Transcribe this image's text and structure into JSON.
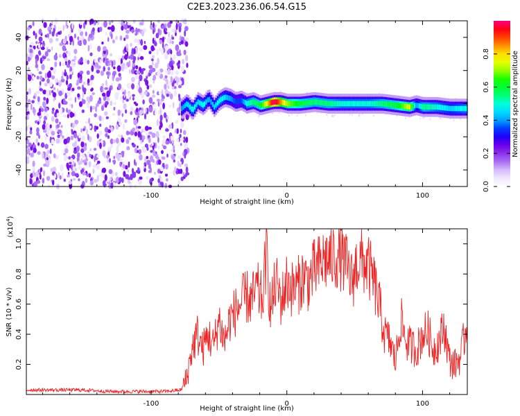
{
  "figure_title": "C2E3.2023.236.06.54.G15",
  "colorbar": {
    "label": "Normalized spectral amplitude",
    "ticks": [
      0.0,
      0.2,
      0.4,
      0.6,
      0.8
    ],
    "tick_labels": [
      "0.0",
      "0.2",
      "0.4",
      "0.6",
      "0.8"
    ],
    "range": [
      0.0,
      1.0
    ],
    "colors": [
      "#ffffff",
      "#e8d8ff",
      "#a060f0",
      "#7a00e8",
      "#0000ff",
      "#00ffff",
      "#00ff00",
      "#ffff00",
      "#ff8000",
      "#ff0000",
      "#ff0080"
    ]
  },
  "chart_data": [
    {
      "type": "heatmap",
      "title": "",
      "xlabel": "Height of straight line (km)",
      "ylabel": "Frequency (Hz)",
      "xlim": [
        -192,
        133
      ],
      "ylim": [
        -50,
        50
      ],
      "xticks": [
        -100,
        0,
        100
      ],
      "xtick_labels": [
        "-100",
        "0",
        "100"
      ],
      "yticks": [
        -40,
        -20,
        0,
        20,
        40
      ],
      "ytick_labels": [
        "-40",
        "-20",
        "0",
        "20",
        "40"
      ],
      "grid": false,
      "noise_region_x": [
        -192,
        -75
      ],
      "ridge": {
        "name": "",
        "x": [
          -78,
          -74,
          -70,
          -66,
          -62,
          -58,
          -54,
          -50,
          -46,
          -42,
          -38,
          -34,
          -30,
          -25,
          -20,
          -15,
          -10,
          -5,
          0,
          5,
          10,
          20,
          30,
          40,
          50,
          60,
          70,
          80,
          90,
          95,
          100,
          110,
          120,
          133
        ],
        "y": [
          -3,
          0,
          -4,
          1,
          -1,
          3,
          -2,
          2,
          4,
          3,
          1,
          2,
          0,
          1,
          -1,
          0,
          1,
          1,
          0,
          0,
          0,
          1,
          0,
          0,
          0,
          0,
          0,
          -1,
          -2,
          -1,
          -2,
          -2,
          -3,
          -3
        ],
        "amplitude": [
          0.4,
          0.45,
          0.5,
          0.45,
          0.5,
          0.4,
          0.45,
          0.5,
          0.45,
          0.4,
          0.35,
          0.35,
          0.5,
          0.55,
          0.6,
          0.8,
          1.0,
          0.85,
          0.7,
          0.65,
          0.6,
          0.55,
          0.55,
          0.5,
          0.5,
          0.5,
          0.55,
          0.6,
          0.75,
          0.4,
          0.55,
          0.5,
          0.45,
          0.5
        ]
      }
    },
    {
      "type": "line",
      "title": "",
      "xlabel": "Height of straight line (km)",
      "ylabel": "SNR (10 * v/v)",
      "y_multiplier_label": "(x10",
      "y_multiplier_exp": "4",
      "y_multiplier_close": ")",
      "xlim": [
        -192,
        133
      ],
      "ylim": [
        0,
        1.1
      ],
      "xticks": [
        -100,
        0,
        100
      ],
      "xtick_labels": [
        "-100",
        "0",
        "100"
      ],
      "yticks": [
        0.2,
        0.4,
        0.6,
        0.8,
        1.0
      ],
      "ytick_labels": [
        "0.2",
        "0.4",
        "0.6",
        "0.8",
        "1.0"
      ],
      "grid": false,
      "color": "#ee2222",
      "series": [
        {
          "name": "",
          "x": [
            -192,
            -170,
            -150,
            -130,
            -110,
            -90,
            -78,
            -74,
            -70,
            -66,
            -62,
            -58,
            -54,
            -50,
            -46,
            -42,
            -38,
            -34,
            -30,
            -26,
            -22,
            -18,
            -15,
            -12,
            -8,
            -4,
            0,
            4,
            8,
            12,
            16,
            20,
            24,
            28,
            32,
            36,
            40,
            44,
            48,
            52,
            56,
            60,
            64,
            68,
            72,
            76,
            80,
            84,
            88,
            92,
            96,
            100,
            104,
            108,
            112,
            116,
            120,
            124,
            128,
            133
          ],
          "values": [
            0.03,
            0.03,
            0.03,
            0.02,
            0.02,
            0.02,
            0.03,
            0.1,
            0.3,
            0.4,
            0.3,
            0.4,
            0.32,
            0.5,
            0.35,
            0.5,
            0.55,
            0.6,
            0.65,
            0.62,
            0.7,
            0.62,
            0.95,
            0.55,
            0.75,
            0.62,
            0.75,
            0.7,
            0.72,
            0.78,
            0.75,
            0.82,
            0.85,
            0.9,
            0.9,
            0.92,
            0.92,
            0.85,
            0.75,
            0.88,
            0.88,
            0.85,
            0.75,
            0.6,
            0.4,
            0.35,
            0.22,
            0.5,
            0.35,
            0.32,
            0.3,
            0.4,
            0.42,
            0.3,
            0.35,
            0.45,
            0.22,
            0.2,
            0.25,
            0.48
          ]
        }
      ]
    }
  ]
}
